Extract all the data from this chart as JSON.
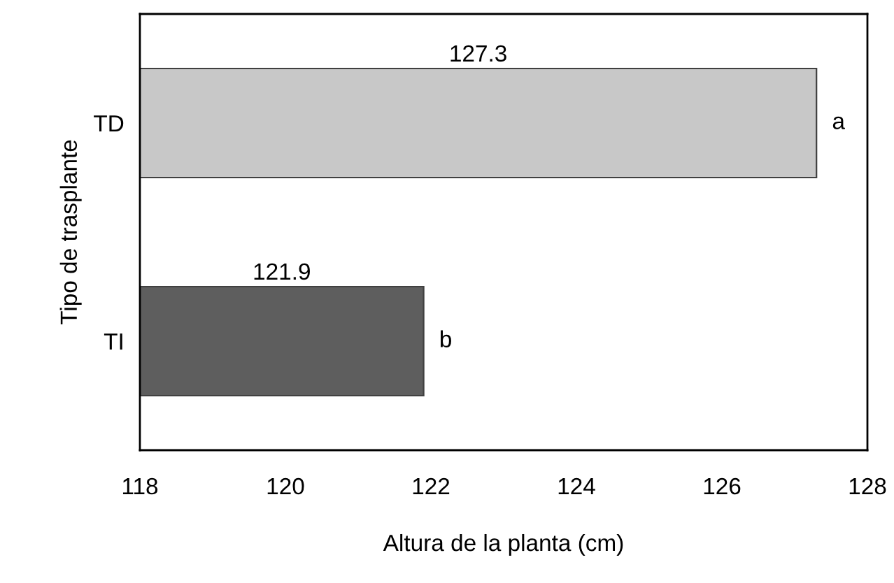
{
  "chart_data": {
    "type": "bar",
    "orientation": "horizontal",
    "xlabel": "Altura de la planta (cm)",
    "ylabel": "Tipo de trasplante",
    "categories": [
      "TD",
      "TI"
    ],
    "values": [
      127.3,
      121.9
    ],
    "colors": [
      "#c8c8c8",
      "#5e5e5e"
    ],
    "xlim": [
      118,
      128
    ],
    "xticks": [
      118,
      120,
      122,
      124,
      126,
      128
    ],
    "data_labels": true,
    "grid": false,
    "legend": false,
    "annotations": [
      {
        "text": "a",
        "x": 127.3,
        "y": "TD"
      },
      {
        "text": "b",
        "x": 121.9,
        "y": "TI"
      }
    ]
  }
}
